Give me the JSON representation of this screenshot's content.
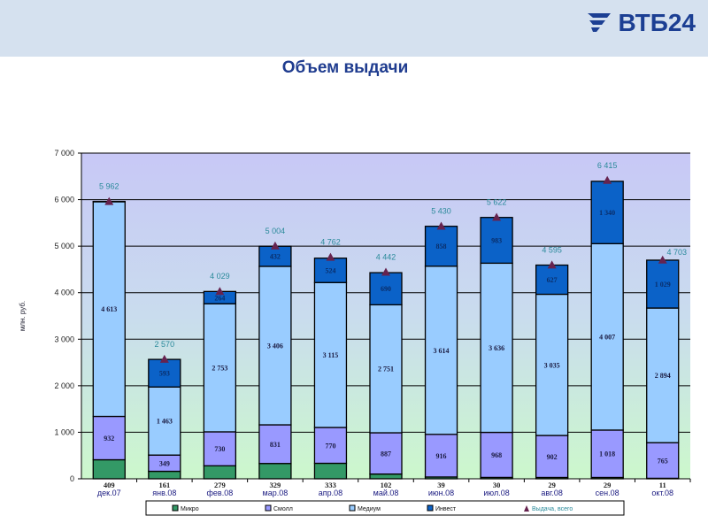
{
  "header": {
    "logo_text": "ВТБ24",
    "title": "Объем выдачи"
  },
  "colors": {
    "micro": "#339966",
    "small": "#9999ff",
    "medium": "#99ccff",
    "invest": "#0b62c8",
    "total": "#66234f",
    "total_label": "#2a8a9a"
  },
  "chart_data": {
    "type": "bar",
    "stacked": true,
    "title": "Объем выдачи",
    "ylabel": "млн. руб.",
    "ylim": [
      0,
      7000
    ],
    "yticks": [
      "0",
      "1 000",
      "2 000",
      "3 000",
      "4 000",
      "5 000",
      "6 000",
      "7 000"
    ],
    "grid": true,
    "legend_position": "bottom",
    "categories": [
      "дек.07",
      "янв.08",
      "фев.08",
      "мар.08",
      "апр.08",
      "май.08",
      "июн.08",
      "июл.08",
      "авг.08",
      "сен.08",
      "окт.08"
    ],
    "series": [
      {
        "name": "Микро",
        "key": "micro",
        "values": [
          409,
          161,
          279,
          329,
          333,
          102,
          39,
          30,
          29,
          29,
          11
        ],
        "labels": [
          "409",
          "161",
          "279",
          "329",
          "333",
          "102",
          "39",
          "30",
          "29",
          "29",
          "11"
        ]
      },
      {
        "name": "Смолл",
        "key": "small",
        "values": [
          932,
          349,
          730,
          831,
          770,
          887,
          916,
          968,
          902,
          1018,
          765
        ],
        "labels": [
          "932",
          "349",
          "730",
          "831",
          "770",
          "887",
          "916",
          "968",
          "902",
          "1 018",
          "765"
        ]
      },
      {
        "name": "Медиум",
        "key": "medium",
        "values": [
          4613,
          1463,
          2753,
          3406,
          3115,
          2751,
          3614,
          3636,
          3035,
          4007,
          2894
        ],
        "labels": [
          "4 613",
          "1 463",
          "2 753",
          "3 406",
          "3 115",
          "2 751",
          "3 614",
          "3 636",
          "3 035",
          "4 007",
          "2 894"
        ]
      },
      {
        "name": "Инвест",
        "key": "invest",
        "values": [
          8,
          593,
          264,
          432,
          524,
          690,
          858,
          983,
          627,
          1340,
          1029
        ],
        "labels": [
          "",
          "593",
          "264",
          "432",
          "524",
          "690",
          "858",
          "983",
          "627",
          "1 340",
          "1 029"
        ]
      }
    ],
    "total": {
      "name": "Выдача, всего",
      "values": [
        5962,
        2570,
        4029,
        5004,
        4762,
        4442,
        5430,
        5622,
        4595,
        6415,
        4703
      ],
      "labels": [
        "5 962",
        "2 570",
        "4 029",
        "5 004",
        "4 762",
        "4 442",
        "5 430",
        "5 622",
        "4 595",
        "6 415",
        "4 703"
      ]
    }
  }
}
